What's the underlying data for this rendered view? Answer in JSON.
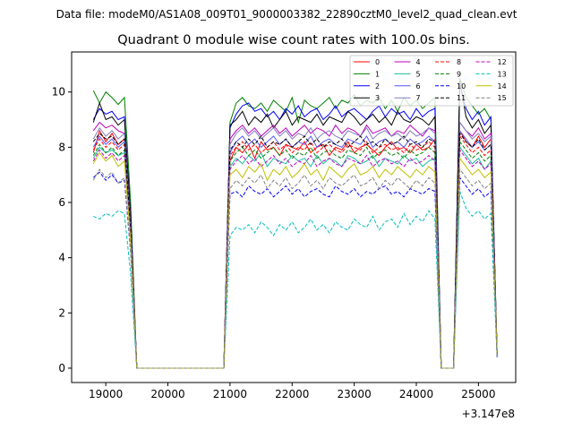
{
  "suptitle": "Data file: modeM0/AS1A08_009T01_9000003382_22890cztM0_level2_quad_clean.evt",
  "chart_data": {
    "type": "line",
    "title": "Quadrant 0 module wise count rates with 100.0s bins.",
    "xlabel": "",
    "ylabel": "",
    "x_offset_label": "+3.147e8",
    "xlim": [
      18450,
      25600
    ],
    "ylim": [
      -0.52,
      11.45
    ],
    "xticks": [
      19000,
      20000,
      21000,
      22000,
      23000,
      24000,
      25000
    ],
    "yticks": [
      0,
      2,
      4,
      6,
      8,
      10
    ],
    "grid": false,
    "legend_placement": "top-right",
    "x": [
      18800,
      18900,
      19000,
      19100,
      19200,
      19300,
      19400,
      19500,
      19600,
      19700,
      19800,
      19900,
      20000,
      20100,
      20200,
      20300,
      20400,
      20500,
      20600,
      20700,
      20800,
      20900,
      21000,
      21100,
      21200,
      21300,
      21400,
      21500,
      21600,
      21700,
      21800,
      21900,
      22000,
      22100,
      22200,
      22300,
      22400,
      22500,
      22600,
      22700,
      22800,
      22900,
      23000,
      23100,
      23200,
      23300,
      23400,
      23500,
      23600,
      23700,
      23800,
      23900,
      24000,
      24100,
      24200,
      24300,
      24400,
      24500,
      24600,
      24700,
      24800,
      24900,
      25000,
      25100,
      25200,
      25300
    ],
    "series": [
      {
        "name": "0",
        "color": "#ff0000",
        "dash": "solid",
        "values": [
          7.8,
          8.6,
          8.2,
          8.5,
          8.1,
          8.3,
          5.0,
          0,
          0,
          0,
          0,
          0,
          0,
          0,
          0,
          0,
          0,
          0,
          0,
          0,
          0,
          0,
          7.5,
          8.0,
          7.8,
          8.1,
          7.6,
          8.2,
          7.9,
          8.0,
          7.7,
          8.1,
          8.0,
          7.9,
          8.2,
          7.8,
          8.0,
          8.1,
          7.7,
          8.0,
          7.9,
          8.2,
          7.8,
          8.0,
          8.1,
          7.9,
          7.7,
          8.0,
          8.2,
          7.9,
          8.0,
          7.8,
          8.1,
          7.9,
          8.0,
          8.3,
          0,
          0,
          0,
          8.6,
          8.2,
          8.0,
          8.4,
          8.0,
          8.3,
          0.5
        ]
      },
      {
        "name": "1",
        "color": "#008000",
        "dash": "solid",
        "values": [
          10.05,
          9.6,
          10.0,
          9.8,
          9.55,
          9.8,
          6.0,
          0,
          0,
          0,
          0,
          0,
          0,
          0,
          0,
          0,
          0,
          0,
          0,
          0,
          0,
          0,
          8.9,
          9.6,
          9.8,
          9.5,
          9.4,
          9.6,
          9.3,
          9.7,
          9.5,
          9.3,
          9.8,
          8.9,
          9.7,
          9.5,
          9.4,
          9.6,
          9.8,
          9.4,
          9.7,
          9.6,
          9.9,
          9.5,
          9.7,
          9.6,
          9.8,
          9.4,
          9.7,
          9.3,
          9.8,
          9.5,
          9.7,
          9.4,
          9.6,
          9.8,
          0,
          0,
          0,
          10.5,
          9.8,
          9.5,
          9.2,
          9.4,
          9.0,
          0.6
        ]
      },
      {
        "name": "2",
        "color": "#0000ff",
        "dash": "solid",
        "values": [
          9.0,
          9.4,
          9.2,
          9.3,
          9.0,
          9.1,
          5.5,
          0,
          0,
          0,
          0,
          0,
          0,
          0,
          0,
          0,
          0,
          0,
          0,
          0,
          0,
          0,
          8.7,
          9.2,
          9.5,
          9.6,
          9.3,
          9.4,
          9.1,
          9.3,
          9.0,
          9.4,
          9.2,
          9.5,
          9.1,
          9.3,
          9.4,
          9.0,
          9.2,
          9.5,
          9.1,
          9.3,
          9.4,
          9.2,
          9.0,
          9.3,
          9.5,
          9.1,
          9.4,
          9.2,
          9.3,
          9.0,
          9.4,
          9.1,
          9.3,
          9.4,
          0,
          0,
          0,
          10.3,
          9.4,
          9.0,
          9.3,
          8.8,
          9.1,
          0.4
        ]
      },
      {
        "name": "3",
        "color": "#000000",
        "dash": "solid",
        "values": [
          8.9,
          9.6,
          9.0,
          9.1,
          8.8,
          9.0,
          5.5,
          0,
          0,
          0,
          0,
          0,
          0,
          0,
          0,
          0,
          0,
          0,
          0,
          0,
          0,
          0,
          8.8,
          9.0,
          9.3,
          8.8,
          9.1,
          8.9,
          9.2,
          8.7,
          9.0,
          9.3,
          8.8,
          9.1,
          9.0,
          8.9,
          9.2,
          8.8,
          9.1,
          9.0,
          8.9,
          9.3,
          9.1,
          8.8,
          9.0,
          9.2,
          8.9,
          9.1,
          8.8,
          9.3,
          9.0,
          8.9,
          9.1,
          9.0,
          8.8,
          9.1,
          0,
          0,
          0,
          10.4,
          9.1,
          8.7,
          9.0,
          8.5,
          8.8,
          0.5
        ]
      },
      {
        "name": "4",
        "color": "#bf00bf",
        "dash": "solid",
        "values": [
          8.6,
          8.9,
          8.7,
          8.8,
          8.6,
          8.5,
          5.2,
          0,
          0,
          0,
          0,
          0,
          0,
          0,
          0,
          0,
          0,
          0,
          0,
          0,
          0,
          0,
          8.3,
          8.6,
          8.8,
          8.5,
          8.7,
          8.4,
          8.6,
          8.8,
          8.5,
          8.7,
          8.4,
          8.6,
          8.8,
          8.5,
          8.7,
          8.6,
          8.4,
          8.8,
          8.5,
          8.7,
          8.6,
          8.4,
          8.8,
          8.5,
          8.6,
          8.7,
          8.4,
          8.6,
          8.5,
          8.8,
          8.6,
          8.4,
          8.7,
          8.6,
          0,
          0,
          0,
          8.9,
          8.6,
          8.4,
          8.7,
          8.3,
          8.5,
          0.5
        ]
      },
      {
        "name": "5",
        "color": "#1abc9c",
        "dash": "solid",
        "values": [
          7.6,
          8.0,
          7.8,
          7.9,
          7.7,
          7.8,
          4.8,
          0,
          0,
          0,
          0,
          0,
          0,
          0,
          0,
          0,
          0,
          0,
          0,
          0,
          0,
          0,
          7.3,
          7.6,
          7.4,
          7.7,
          7.5,
          7.8,
          7.3,
          7.6,
          7.5,
          7.4,
          7.7,
          7.5,
          7.6,
          7.3,
          7.7,
          7.4,
          7.6,
          7.5,
          7.3,
          7.7,
          7.6,
          7.4,
          7.5,
          7.7,
          7.3,
          7.6,
          7.5,
          7.4,
          7.7,
          7.5,
          7.6,
          7.3,
          7.5,
          7.6,
          0,
          0,
          0,
          8.0,
          7.7,
          7.4,
          7.6,
          7.2,
          7.5,
          0.5
        ]
      },
      {
        "name": "6",
        "color": "#5555ff",
        "dash": "solid",
        "values": [
          8.0,
          8.4,
          8.1,
          8.3,
          8.0,
          8.2,
          5.0,
          0,
          0,
          0,
          0,
          0,
          0,
          0,
          0,
          0,
          0,
          0,
          0,
          0,
          0,
          0,
          7.8,
          8.2,
          8.4,
          8.1,
          8.3,
          8.0,
          8.2,
          8.4,
          8.1,
          8.3,
          8.0,
          8.2,
          8.1,
          8.4,
          8.0,
          8.2,
          8.3,
          8.1,
          8.0,
          8.3,
          8.2,
          8.1,
          8.4,
          8.0,
          8.2,
          8.3,
          8.1,
          8.2,
          8.0,
          8.3,
          8.1,
          8.2,
          8.4,
          8.2,
          0,
          0,
          0,
          8.6,
          8.3,
          8.0,
          8.2,
          7.9,
          8.1,
          0.5
        ]
      },
      {
        "name": "7",
        "color": "#8080c0",
        "dash": "solid",
        "values": [
          8.3,
          8.7,
          8.4,
          8.6,
          8.3,
          8.5,
          5.1,
          0,
          0,
          0,
          0,
          0,
          0,
          0,
          0,
          0,
          0,
          0,
          0,
          0,
          0,
          0,
          8.1,
          8.5,
          8.7,
          8.4,
          8.6,
          8.3,
          8.5,
          8.7,
          8.4,
          8.6,
          8.3,
          8.5,
          8.4,
          8.7,
          8.3,
          8.5,
          8.6,
          8.4,
          8.3,
          8.6,
          8.5,
          8.4,
          8.7,
          8.3,
          8.5,
          8.6,
          8.4,
          8.5,
          8.3,
          8.6,
          8.4,
          8.5,
          8.7,
          8.5,
          0,
          0,
          0,
          8.9,
          8.6,
          8.3,
          8.5,
          8.2,
          8.4,
          0.5
        ]
      },
      {
        "name": "8",
        "color": "#ff0000",
        "dash": "dashed",
        "values": [
          7.9,
          8.3,
          8.0,
          8.2,
          7.9,
          8.1,
          4.9,
          0,
          0,
          0,
          0,
          0,
          0,
          0,
          0,
          0,
          0,
          0,
          0,
          0,
          0,
          0,
          7.7,
          8.0,
          8.2,
          7.9,
          8.1,
          7.8,
          8.0,
          8.2,
          7.9,
          8.1,
          7.8,
          8.0,
          7.9,
          8.2,
          7.8,
          8.0,
          8.1,
          7.9,
          7.8,
          8.1,
          8.0,
          7.9,
          8.2,
          7.8,
          8.0,
          8.1,
          7.9,
          8.0,
          7.8,
          8.1,
          7.9,
          8.0,
          8.2,
          8.0,
          0,
          0,
          0,
          8.4,
          8.1,
          7.8,
          8.0,
          7.7,
          7.9,
          0.5
        ]
      },
      {
        "name": "9",
        "color": "#008000",
        "dash": "dashed",
        "values": [
          7.7,
          8.1,
          7.8,
          8.0,
          7.7,
          7.9,
          4.8,
          0,
          0,
          0,
          0,
          0,
          0,
          0,
          0,
          0,
          0,
          0,
          0,
          0,
          0,
          0,
          7.5,
          7.8,
          8.0,
          7.7,
          7.9,
          7.6,
          7.8,
          8.0,
          7.7,
          7.9,
          7.6,
          7.8,
          7.7,
          8.0,
          7.6,
          7.8,
          7.9,
          7.7,
          7.6,
          7.9,
          7.8,
          7.7,
          8.0,
          7.6,
          7.8,
          7.9,
          7.7,
          7.8,
          7.6,
          7.9,
          7.7,
          7.8,
          8.0,
          7.8,
          0,
          0,
          0,
          8.2,
          7.9,
          7.6,
          7.8,
          7.5,
          7.7,
          0.5
        ]
      },
      {
        "name": "10",
        "color": "#0000ff",
        "dash": "dashed",
        "values": [
          6.9,
          7.1,
          6.8,
          7.0,
          6.7,
          6.8,
          4.2,
          0,
          0,
          0,
          0,
          0,
          0,
          0,
          0,
          0,
          0,
          0,
          0,
          0,
          0,
          0,
          6.3,
          6.4,
          6.2,
          6.6,
          6.4,
          6.3,
          6.5,
          6.2,
          6.4,
          6.6,
          6.3,
          6.5,
          6.2,
          6.4,
          6.5,
          6.3,
          6.2,
          6.6,
          6.4,
          6.3,
          6.5,
          6.2,
          6.4,
          6.3,
          6.5,
          6.6,
          6.3,
          6.4,
          6.2,
          6.5,
          6.4,
          6.3,
          6.5,
          6.4,
          0,
          0,
          0,
          6.9,
          6.6,
          6.3,
          6.5,
          6.2,
          6.4,
          0.4
        ]
      },
      {
        "name": "11",
        "color": "#000000",
        "dash": "dashed",
        "values": [
          8.2,
          8.5,
          8.3,
          8.4,
          8.1,
          8.3,
          5.0,
          0,
          0,
          0,
          0,
          0,
          0,
          0,
          0,
          0,
          0,
          0,
          0,
          0,
          0,
          0,
          7.9,
          8.2,
          8.0,
          8.3,
          8.1,
          8.4,
          8.0,
          8.2,
          8.1,
          8.3,
          8.0,
          8.2,
          8.4,
          8.1,
          8.3,
          8.0,
          8.2,
          8.1,
          8.3,
          8.0,
          8.2,
          8.4,
          8.1,
          8.2,
          8.0,
          8.3,
          8.1,
          8.2,
          8.4,
          8.1,
          8.2,
          8.0,
          8.3,
          8.2,
          0,
          0,
          0,
          8.5,
          8.2,
          8.0,
          8.3,
          7.9,
          8.1,
          0.5
        ]
      },
      {
        "name": "12",
        "color": "#bf00bf",
        "dash": "dashed",
        "values": [
          7.5,
          7.9,
          7.6,
          7.8,
          7.5,
          7.7,
          4.7,
          0,
          0,
          0,
          0,
          0,
          0,
          0,
          0,
          0,
          0,
          0,
          0,
          0,
          0,
          0,
          7.2,
          7.5,
          7.7,
          7.4,
          7.6,
          7.3,
          7.5,
          7.7,
          7.4,
          7.6,
          7.3,
          7.5,
          7.4,
          7.7,
          7.3,
          7.5,
          7.6,
          7.4,
          7.3,
          7.6,
          7.5,
          7.4,
          7.7,
          7.3,
          7.5,
          7.6,
          7.4,
          7.5,
          7.3,
          7.6,
          7.4,
          7.5,
          7.7,
          7.5,
          0,
          0,
          0,
          7.9,
          7.6,
          7.3,
          7.5,
          7.2,
          7.4,
          0.5
        ]
      },
      {
        "name": "13",
        "color": "#00bfbf",
        "dash": "dashed",
        "values": [
          5.5,
          5.4,
          5.6,
          5.5,
          5.7,
          5.6,
          3.4,
          0,
          0,
          0,
          0,
          0,
          0,
          0,
          0,
          0,
          0,
          0,
          0,
          0,
          0,
          0,
          4.8,
          5.1,
          5.0,
          5.2,
          4.9,
          5.3,
          5.1,
          4.8,
          5.2,
          5.0,
          5.3,
          4.9,
          5.1,
          5.4,
          5.0,
          5.2,
          4.9,
          5.3,
          5.1,
          5.0,
          5.4,
          5.2,
          5.1,
          5.5,
          5.0,
          5.3,
          5.4,
          5.1,
          5.6,
          5.2,
          5.5,
          5.3,
          5.7,
          5.4,
          0,
          0,
          0,
          6.4,
          5.8,
          5.5,
          5.7,
          5.4,
          5.6,
          0.4
        ]
      },
      {
        "name": "14",
        "color": "#bfbf00",
        "dash": "solid",
        "values": [
          7.4,
          7.8,
          7.5,
          7.7,
          7.3,
          7.5,
          4.6,
          0,
          0,
          0,
          0,
          0,
          0,
          0,
          0,
          0,
          0,
          0,
          0,
          0,
          0,
          0,
          7.0,
          7.2,
          6.9,
          7.3,
          7.1,
          7.4,
          6.8,
          7.2,
          7.0,
          7.3,
          6.9,
          7.1,
          7.4,
          7.0,
          7.2,
          6.8,
          7.3,
          7.1,
          6.9,
          7.2,
          7.4,
          7.0,
          7.1,
          7.3,
          6.9,
          7.2,
          7.0,
          7.3,
          7.1,
          6.9,
          7.2,
          7.0,
          7.3,
          7.1,
          0,
          0,
          0,
          7.6,
          7.3,
          7.0,
          7.2,
          6.9,
          7.1,
          0.5
        ]
      },
      {
        "name": "15",
        "color": "#808080",
        "dash": "dashed",
        "values": [
          6.8,
          7.2,
          6.9,
          7.1,
          6.7,
          6.9,
          4.2,
          0,
          0,
          0,
          0,
          0,
          0,
          0,
          0,
          0,
          0,
          0,
          0,
          0,
          0,
          0,
          6.5,
          6.8,
          6.6,
          6.9,
          6.7,
          7.0,
          6.5,
          6.8,
          6.6,
          6.9,
          6.5,
          6.7,
          7.0,
          6.6,
          6.8,
          6.5,
          6.9,
          6.7,
          6.6,
          6.8,
          7.0,
          6.6,
          6.7,
          6.9,
          6.5,
          6.8,
          6.6,
          6.9,
          6.7,
          6.5,
          6.8,
          6.6,
          6.9,
          6.7,
          0,
          0,
          0,
          7.2,
          6.9,
          6.6,
          6.8,
          6.5,
          6.7,
          0.4
        ]
      }
    ]
  }
}
